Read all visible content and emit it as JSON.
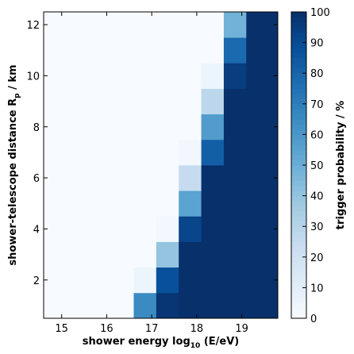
{
  "chart_data": {
    "type": "heatmap",
    "xlabel": {
      "main": "shower energy log",
      "sub": "10",
      "tail": " (E/eV)"
    },
    "ylabel": {
      "main": "shower-telescope distance R",
      "sub": "p",
      "tail": " / km"
    },
    "colorbar_label": "trigger probability / %",
    "colormap": "Blues",
    "x_edges": [
      14.6,
      15.1,
      15.6,
      16.1,
      16.6,
      17.1,
      17.6,
      18.1,
      18.6,
      19.1,
      19.6,
      19.8
    ],
    "x_ticks": [
      15,
      16,
      17,
      18,
      19
    ],
    "x_tick_labels": [
      "15",
      "16",
      "17",
      "18",
      "19"
    ],
    "y_edges": [
      0.5,
      1.5,
      2.5,
      3.5,
      4.5,
      5.5,
      6.5,
      7.5,
      8.5,
      9.5,
      10.5,
      11.5,
      12.5
    ],
    "y_ticks": [
      2,
      4,
      6,
      8,
      10,
      12
    ],
    "y_tick_labels": [
      "2",
      "4",
      "6",
      "8",
      "10",
      "12"
    ],
    "xlim": [
      14.6,
      19.8
    ],
    "ylim": [
      0.5,
      12.5
    ],
    "colorbar_range": [
      0,
      100
    ],
    "colorbar_ticks": [
      0,
      10,
      20,
      30,
      40,
      50,
      60,
      70,
      80,
      90,
      100
    ],
    "colorbar_tick_labels": [
      "0",
      "10",
      "20",
      "30",
      "40",
      "50",
      "60",
      "70",
      "80",
      "90",
      "100"
    ],
    "values": [
      [
        0,
        0,
        0,
        0,
        65,
        98,
        100,
        100,
        100,
        100,
        100
      ],
      [
        0,
        0,
        0,
        0,
        5,
        88,
        100,
        100,
        100,
        100,
        100
      ],
      [
        0,
        0,
        0,
        0,
        0,
        40,
        100,
        100,
        100,
        100,
        100
      ],
      [
        0,
        0,
        0,
        0,
        0,
        2,
        92,
        100,
        100,
        100,
        100
      ],
      [
        0,
        0,
        0,
        0,
        0,
        0,
        55,
        100,
        100,
        100,
        100
      ],
      [
        0,
        0,
        0,
        0,
        0,
        0,
        25,
        100,
        100,
        100,
        100
      ],
      [
        0,
        0,
        0,
        0,
        0,
        0,
        3,
        82,
        100,
        100,
        100
      ],
      [
        0,
        0,
        0,
        0,
        0,
        0,
        0,
        58,
        100,
        100,
        100
      ],
      [
        0,
        0,
        0,
        0,
        0,
        0,
        0,
        28,
        100,
        100,
        100
      ],
      [
        0,
        0,
        0,
        0,
        0,
        0,
        0,
        5,
        95,
        100,
        100
      ],
      [
        0,
        0,
        0,
        0,
        0,
        0,
        0,
        0,
        78,
        100,
        100
      ],
      [
        0,
        0,
        0,
        0,
        0,
        0,
        0,
        0,
        48,
        100,
        100
      ]
    ]
  }
}
